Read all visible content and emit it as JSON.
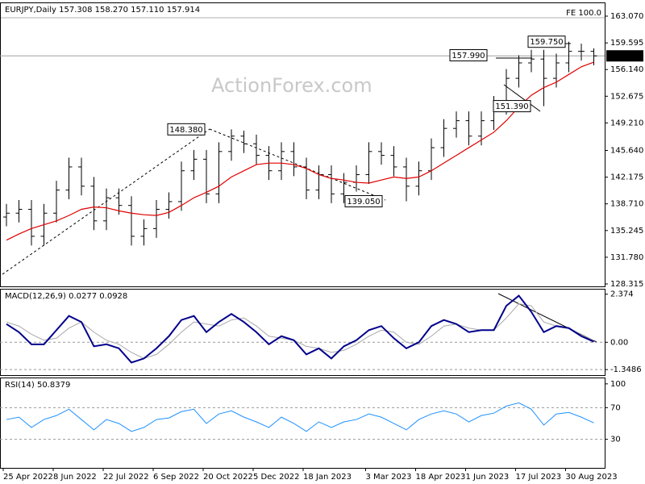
{
  "chart_data": [
    {
      "type": "ohlc",
      "title": "EURJPY,Daily 157.308 158.270 157.110 157.914",
      "watermark": "ActionForex.com",
      "fe_label": "FE 100.0",
      "color": "#000000",
      "categories": [
        "25 Apr 2022",
        null,
        null,
        null,
        "8 Jun 2022",
        null,
        null,
        null,
        "22 Jul 2022",
        null,
        null,
        null,
        "6 Sep 2022",
        null,
        null,
        null,
        "20 Oct 2022",
        null,
        null,
        null,
        "5 Dec 2022",
        null,
        null,
        null,
        "18 Jan 2023",
        null,
        null,
        null,
        null,
        "3 Mar 2023",
        null,
        null,
        null,
        "18 Apr 2023",
        null,
        null,
        null,
        "1 Jun 2023",
        null,
        null,
        null,
        "17 Jul 2023",
        null,
        null,
        null,
        "30 Aug 2023",
        null,
        null
      ],
      "open": [
        137,
        137.5,
        138,
        134.5,
        137.5,
        140.5,
        143.5,
        141,
        136.5,
        139.5,
        138.5,
        134.5,
        135.5,
        138,
        139,
        143,
        144.5,
        140,
        145.5,
        147.5,
        146.5,
        145,
        143,
        145.5,
        143.5,
        140.5,
        142.5,
        140,
        141.5,
        142.5,
        145.5,
        145,
        143.5,
        141,
        143,
        146,
        148.5,
        149.5,
        147.5,
        149.5,
        151.5,
        155,
        157,
        157.5,
        155,
        157,
        158.5,
        158.5
      ],
      "high": [
        138.7,
        139.2,
        139.2,
        138.7,
        141.7,
        144.7,
        144.7,
        142.2,
        140.7,
        140.7,
        139.7,
        136.7,
        139.2,
        140.2,
        144.2,
        145.7,
        145.7,
        146.7,
        148.38,
        148.2,
        147.7,
        146.2,
        146.7,
        146.7,
        144.7,
        143.7,
        143.7,
        142.7,
        143.7,
        146.7,
        146.7,
        146.2,
        144.7,
        144.2,
        147.2,
        149.7,
        150.7,
        150.7,
        150.7,
        152.7,
        156.2,
        157.99,
        158.7,
        158.7,
        158.2,
        159.75,
        159.5,
        158.9
      ],
      "low": [
        135.8,
        136.3,
        133.3,
        133.3,
        136.3,
        139.3,
        139.8,
        135.3,
        135.3,
        137.3,
        133.3,
        133.3,
        134.3,
        136.8,
        137.8,
        141.8,
        138.8,
        138.8,
        144.3,
        145.3,
        143.8,
        141.8,
        141.8,
        142.3,
        139.3,
        139.3,
        138.8,
        138.8,
        140.3,
        141.3,
        143.8,
        142.3,
        139.05,
        139.8,
        141.8,
        144.8,
        147.3,
        146.3,
        146.3,
        148.3,
        150.3,
        153.8,
        155.8,
        151.39,
        153.8,
        155.8,
        157.3,
        156.7
      ],
      "close": [
        137.5,
        138,
        134.5,
        137.5,
        140.5,
        143.5,
        141,
        136.5,
        139.5,
        138.5,
        134.5,
        135.5,
        138,
        139,
        143,
        144.5,
        140,
        145.5,
        147.5,
        146.5,
        145,
        143,
        145.5,
        143.5,
        140.5,
        142.5,
        140,
        141.5,
        142.5,
        145.5,
        145,
        143.5,
        141,
        143,
        146,
        148.5,
        149.5,
        147.5,
        149.5,
        151.5,
        155,
        157,
        157.5,
        155,
        157,
        158.5,
        158.5,
        157.914
      ],
      "ma": {
        "color": "#e00000",
        "values": [
          134,
          134.8,
          135.5,
          136,
          136.5,
          137.2,
          138,
          138.3,
          138.2,
          137.8,
          137.5,
          137.3,
          137.2,
          137.6,
          138.5,
          139.5,
          140.2,
          141,
          142.2,
          143,
          143.8,
          144,
          144,
          143.8,
          143.3,
          142.5,
          142,
          141.8,
          141.5,
          141.4,
          141.8,
          142.2,
          142,
          142.2,
          143,
          144,
          145,
          146,
          147,
          148,
          149.5,
          151.3,
          152.8,
          153.8,
          154.5,
          155.5,
          156.5,
          157.1
        ]
      },
      "last_price": 157.914,
      "price_labels": [
        {
          "value": 148.38,
          "label": "148.380"
        },
        {
          "value": 139.05,
          "label": "139.050"
        },
        {
          "value": 157.99,
          "label": "157.990"
        },
        {
          "value": 159.75,
          "label": "159.750"
        },
        {
          "value": 151.39,
          "label": "151.390"
        }
      ],
      "ylim": [
        128.0,
        164.85
      ],
      "yticks": [
        {
          "value": 163.07,
          "label": "163.070"
        },
        159.595,
        {
          "value": 156.14,
          "label": "156.140"
        },
        152.675,
        {
          "value": 149.21,
          "label": "149.210"
        },
        {
          "value": 145.64,
          "label": "145.640"
        },
        142.175,
        {
          "value": 138.71,
          "label": "138.710"
        },
        135.245,
        {
          "value": 131.78,
          "label": "131.780"
        },
        128.315
      ],
      "grid": false
    },
    {
      "type": "line",
      "title": "MACD(12,26,9) 0.0277 0.0928",
      "series": [
        {
          "color": "#00008b",
          "values": [
            0.9,
            0.5,
            -0.1,
            -0.1,
            0.6,
            1.3,
            1.0,
            -0.2,
            -0.1,
            -0.3,
            -1.0,
            -0.8,
            -0.3,
            0.3,
            1.1,
            1.3,
            0.5,
            1.0,
            1.4,
            1.0,
            0.5,
            -0.1,
            0.3,
            0.1,
            -0.6,
            -0.3,
            -0.8,
            -0.2,
            0.1,
            0.6,
            0.8,
            0.2,
            -0.3,
            0.0,
            0.8,
            1.1,
            0.9,
            0.5,
            0.6,
            0.6,
            1.8,
            2.3,
            1.5,
            0.5,
            0.8,
            0.7,
            0.3,
            0.03
          ]
        },
        {
          "color": "#a8a8a8",
          "values": [
            1.0,
            0.8,
            0.4,
            0.1,
            0.2,
            0.7,
            1.0,
            0.5,
            0.1,
            -0.1,
            -0.5,
            -0.8,
            -0.6,
            -0.1,
            0.5,
            1.0,
            0.9,
            0.8,
            1.1,
            1.2,
            0.8,
            0.3,
            0.2,
            0.1,
            -0.2,
            -0.3,
            -0.5,
            -0.4,
            -0.1,
            0.3,
            0.6,
            0.5,
            0.0,
            -0.1,
            0.3,
            0.8,
            0.9,
            0.7,
            0.6,
            0.6,
            1.2,
            1.9,
            1.8,
            1.0,
            0.8,
            0.7,
            0.4,
            0.09
          ]
        }
      ],
      "ylim": [
        -1.62,
        2.64
      ],
      "yticks": [
        2.374,
        {
          "value": 0,
          "label": "0.00"
        },
        -1.3486
      ],
      "grid": true
    },
    {
      "type": "line",
      "title": "RSI(14) 50.8379",
      "series": [
        {
          "color": "#1e90ff",
          "values": [
            55,
            58,
            45,
            55,
            60,
            68,
            55,
            42,
            55,
            50,
            40,
            45,
            55,
            57,
            65,
            68,
            50,
            62,
            66,
            58,
            52,
            45,
            58,
            50,
            40,
            52,
            45,
            52,
            55,
            62,
            58,
            50,
            42,
            55,
            62,
            66,
            62,
            52,
            60,
            63,
            72,
            76,
            68,
            48,
            62,
            64,
            58,
            50.84
          ]
        }
      ],
      "ylim": [
        -6,
        108
      ],
      "yticks": [
        100,
        70,
        30
      ],
      "grid": true
    }
  ]
}
